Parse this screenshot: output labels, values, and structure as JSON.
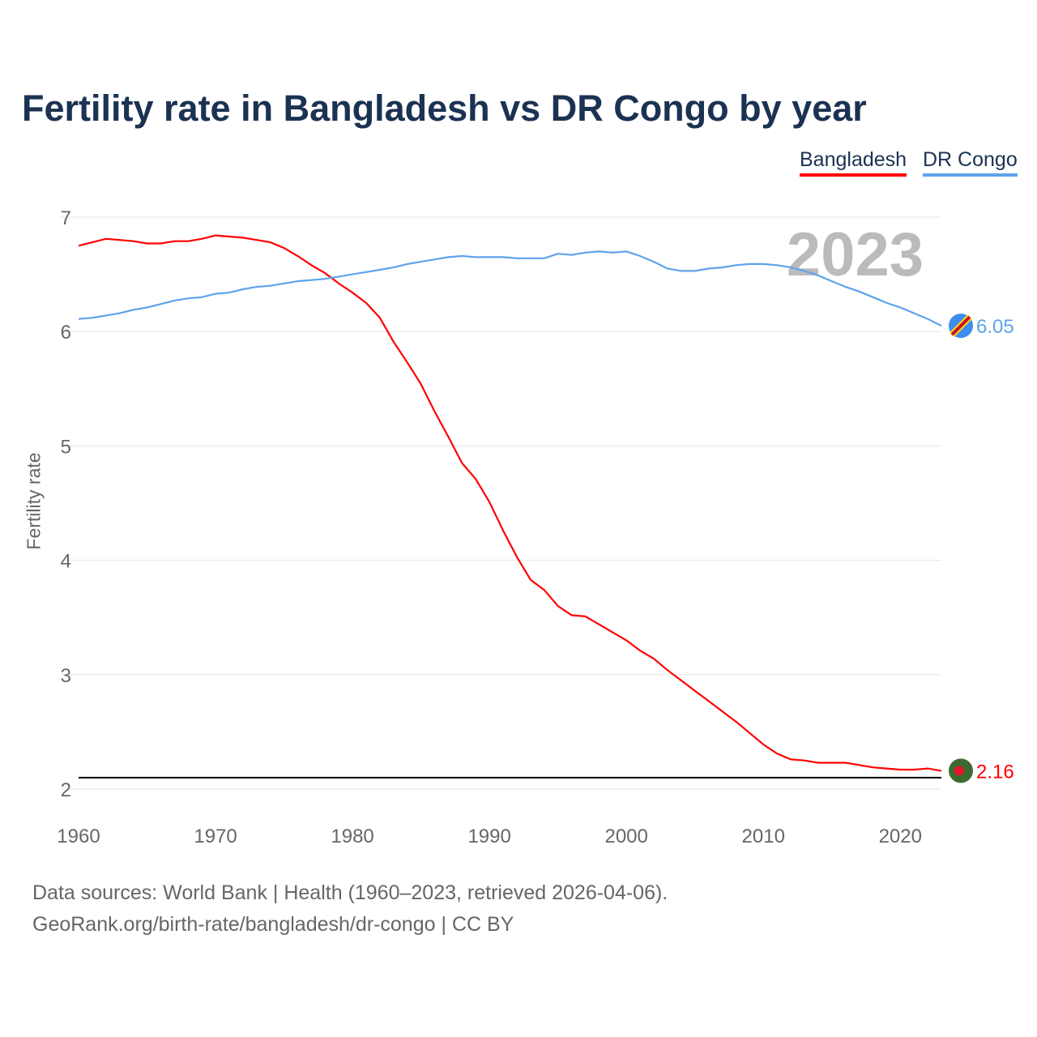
{
  "title": "Fertility rate in Bangladesh vs DR Congo by year",
  "legend": [
    {
      "label": "Bangladesh",
      "color": "#ff0000"
    },
    {
      "label": "DR Congo",
      "color": "#5ea3ea"
    }
  ],
  "year_watermark": "2023",
  "footer": {
    "line1": "Data sources: World Bank | Health (1960–2023, retrieved 2026-04-06).",
    "line2": "GeoRank.org/birth-rate/bangladesh/dr-congo | CC BY"
  },
  "chart_data": {
    "type": "line",
    "title": "Fertility rate in Bangladesh vs DR Congo by year",
    "xlabel": "",
    "ylabel": "Fertility rate",
    "xlim": [
      1960,
      2023
    ],
    "ylim": [
      2,
      7
    ],
    "xticks": [
      "1960",
      "1970",
      "1980",
      "1990",
      "2000",
      "2010",
      "2020"
    ],
    "yticks": [
      "2",
      "3",
      "4",
      "5",
      "6",
      "7"
    ],
    "grid": true,
    "legend_position": "top-right",
    "reference_line": 2.1,
    "x_start": 1960,
    "series": [
      {
        "name": "Bangladesh",
        "color": "#ff0000",
        "end_label": "2.16",
        "values": [
          6.75,
          6.78,
          6.81,
          6.8,
          6.79,
          6.77,
          6.77,
          6.79,
          6.79,
          6.81,
          6.84,
          6.83,
          6.82,
          6.8,
          6.78,
          6.73,
          6.66,
          6.58,
          6.51,
          6.42,
          6.34,
          6.25,
          6.12,
          5.91,
          5.73,
          5.54,
          5.3,
          5.08,
          4.85,
          4.71,
          4.51,
          4.26,
          4.03,
          3.83,
          3.74,
          3.6,
          3.52,
          3.51,
          3.44,
          3.37,
          3.3,
          3.21,
          3.14,
          3.04,
          2.95,
          2.86,
          2.77,
          2.68,
          2.59,
          2.49,
          2.39,
          2.31,
          2.26,
          2.25,
          2.23,
          2.23,
          2.23,
          2.21,
          2.19,
          2.18,
          2.17,
          2.17,
          2.18,
          2.16
        ]
      },
      {
        "name": "DR Congo",
        "color": "#5ea3ea",
        "end_label": "6.05",
        "values": [
          6.11,
          6.12,
          6.14,
          6.16,
          6.19,
          6.21,
          6.24,
          6.27,
          6.29,
          6.3,
          6.33,
          6.34,
          6.37,
          6.39,
          6.4,
          6.42,
          6.44,
          6.45,
          6.46,
          6.48,
          6.5,
          6.52,
          6.54,
          6.56,
          6.59,
          6.61,
          6.63,
          6.65,
          6.66,
          6.65,
          6.65,
          6.65,
          6.64,
          6.64,
          6.64,
          6.68,
          6.67,
          6.69,
          6.7,
          6.69,
          6.7,
          6.66,
          6.61,
          6.55,
          6.53,
          6.53,
          6.55,
          6.56,
          6.58,
          6.59,
          6.59,
          6.58,
          6.56,
          6.53,
          6.49,
          6.44,
          6.39,
          6.35,
          6.3,
          6.25,
          6.21,
          6.16,
          6.11,
          6.05
        ]
      }
    ]
  }
}
